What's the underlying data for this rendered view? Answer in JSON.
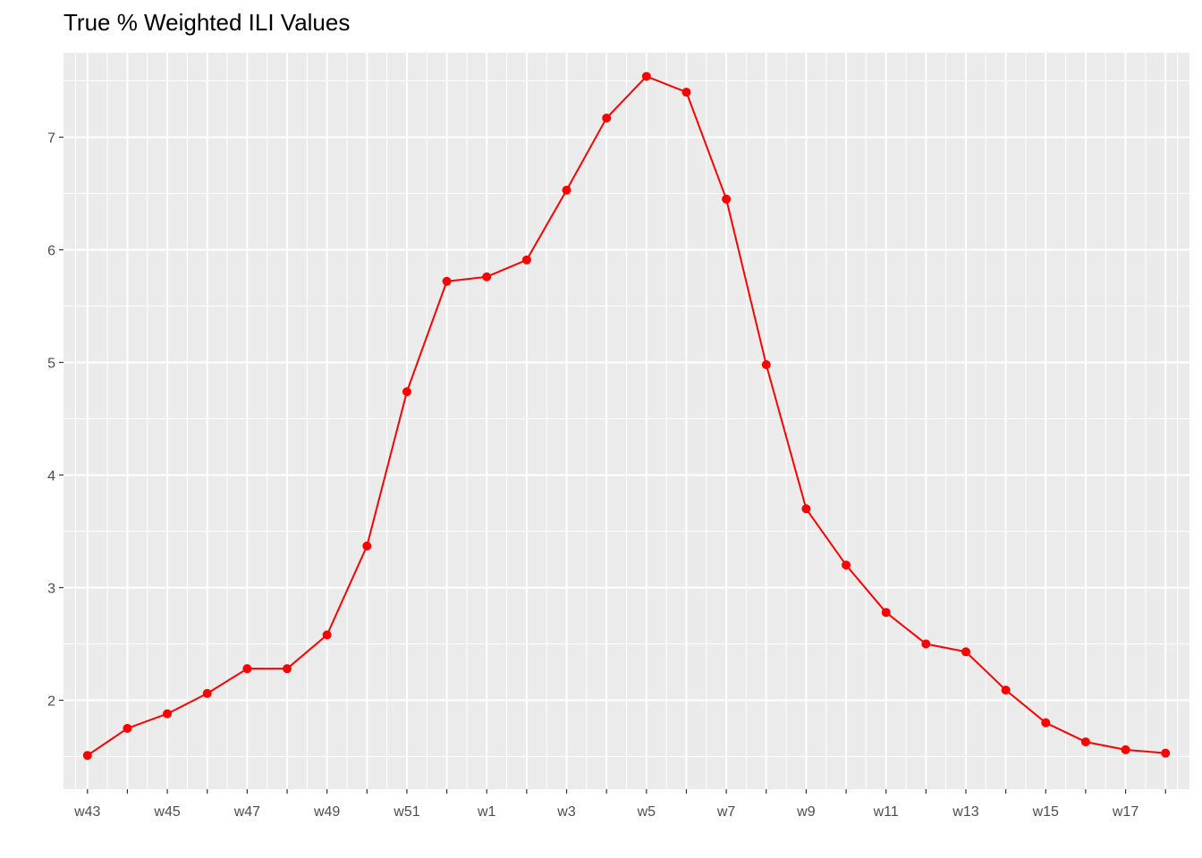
{
  "chart_data": {
    "type": "line",
    "title": "True % Weighted ILI Values",
    "xlabel": "",
    "ylabel": "",
    "categories": [
      "w43",
      "w44",
      "w45",
      "w46",
      "w47",
      "w48",
      "w49",
      "w50",
      "w51",
      "w52",
      "w1",
      "w2",
      "w3",
      "w4",
      "w5",
      "w6",
      "w7",
      "w8",
      "w9",
      "w10",
      "w11",
      "w12",
      "w13",
      "w14",
      "w15",
      "w16",
      "w17",
      "w18"
    ],
    "x_tick_labels": [
      "w43",
      "w45",
      "w47",
      "w49",
      "w51",
      "w1",
      "w3",
      "w5",
      "w7",
      "w9",
      "w11",
      "w13",
      "w15",
      "w17"
    ],
    "y_ticks": [
      2,
      3,
      4,
      5,
      6,
      7
    ],
    "ylim": [
      1.21,
      7.75
    ],
    "grid": true,
    "series": [
      {
        "values": [
          1.51,
          1.75,
          1.88,
          2.06,
          2.28,
          2.28,
          2.58,
          3.37,
          4.74,
          5.72,
          5.76,
          5.91,
          6.53,
          7.17,
          7.54,
          7.4,
          6.45,
          4.98,
          3.7,
          3.2,
          2.78,
          2.5,
          2.43,
          2.09,
          1.8,
          1.63,
          1.56,
          1.53
        ]
      }
    ],
    "colors": {
      "line": "#ff0000",
      "point": "#ff0000",
      "panel_background": "#ebebeb",
      "grid": "#ffffff"
    }
  }
}
